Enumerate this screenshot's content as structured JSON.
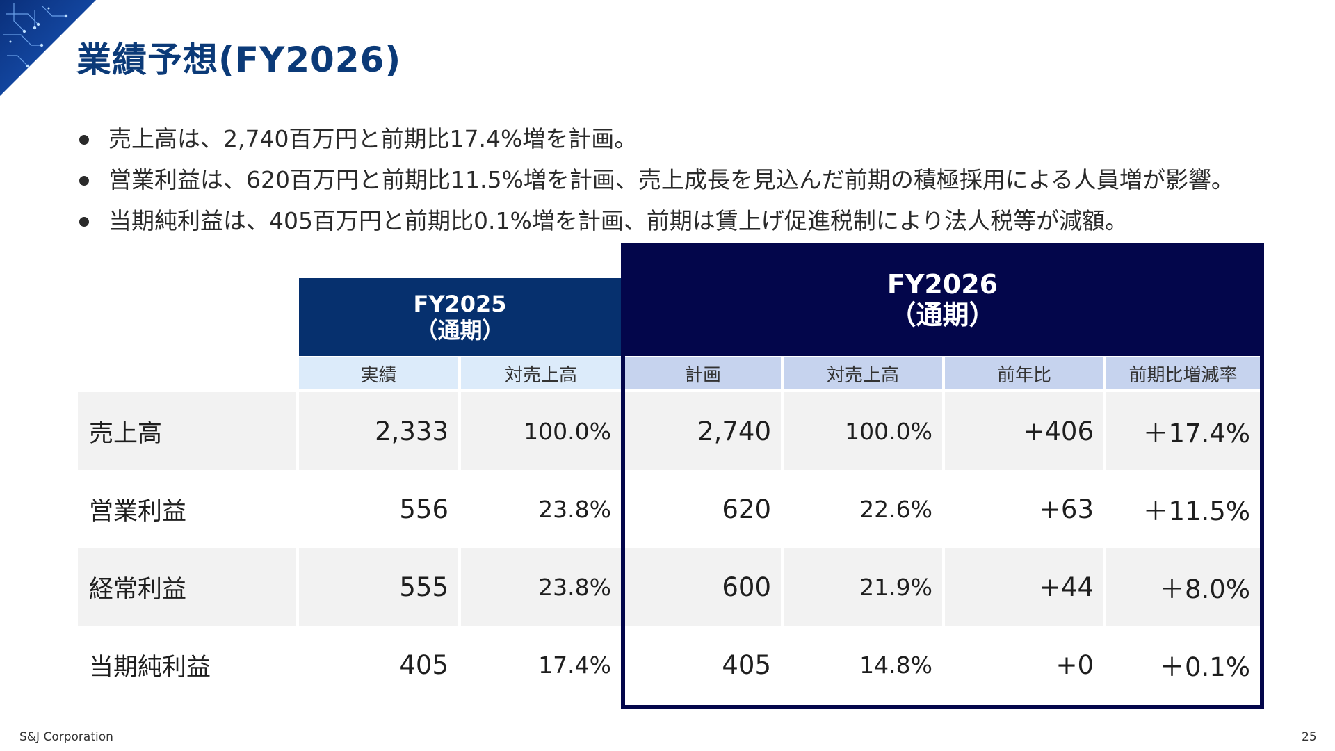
{
  "title": "業績予想(FY2026)",
  "bullets": [
    "売上高は、2,740百万円と前期比17.4%増を計画。",
    "営業利益は、620百万円と前期比11.5%増を計画、売上成長を見込んだ前期の積極採用による人員増が影響。",
    "当期純利益は、405百万円と前期比0.1%増を計画、前期は賃上げ促進税制により法人税等が減額。"
  ],
  "table": {
    "fy2025": {
      "title": "FY2025",
      "subtitle": "（通期）",
      "cols": [
        "実績",
        "対売上高"
      ]
    },
    "fy2026": {
      "title": "FY2026",
      "subtitle": "（通期）",
      "cols": [
        "計画",
        "対売上高",
        "前年比",
        "前期比増減率"
      ]
    },
    "rows": [
      {
        "label": "売上高",
        "v25": "2,333",
        "r25": "100.0%",
        "v26": "2,740",
        "r26": "100.0%",
        "diff": "+406",
        "rate": "＋17.4%"
      },
      {
        "label": "営業利益",
        "v25": "556",
        "r25": "23.8%",
        "v26": "620",
        "r26": "22.6%",
        "diff": "+63",
        "rate": "＋11.5%"
      },
      {
        "label": "経常利益",
        "v25": "555",
        "r25": "23.8%",
        "v26": "600",
        "r26": "21.9%",
        "diff": "+44",
        "rate": "＋8.0%"
      },
      {
        "label": "当期純利益",
        "v25": "405",
        "r25": "17.4%",
        "v26": "405",
        "r26": "14.8%",
        "diff": "+0",
        "rate": "＋0.1%"
      }
    ]
  },
  "footer": {
    "company": "S&J Corporation",
    "page": "25"
  },
  "colors": {
    "title": "#0b3a78",
    "fy2025_header": "#06306e",
    "fy2026_header": "#03064b",
    "fy2025_sub": "#dcebfa",
    "fy2026_sub": "#c6d3ee"
  }
}
